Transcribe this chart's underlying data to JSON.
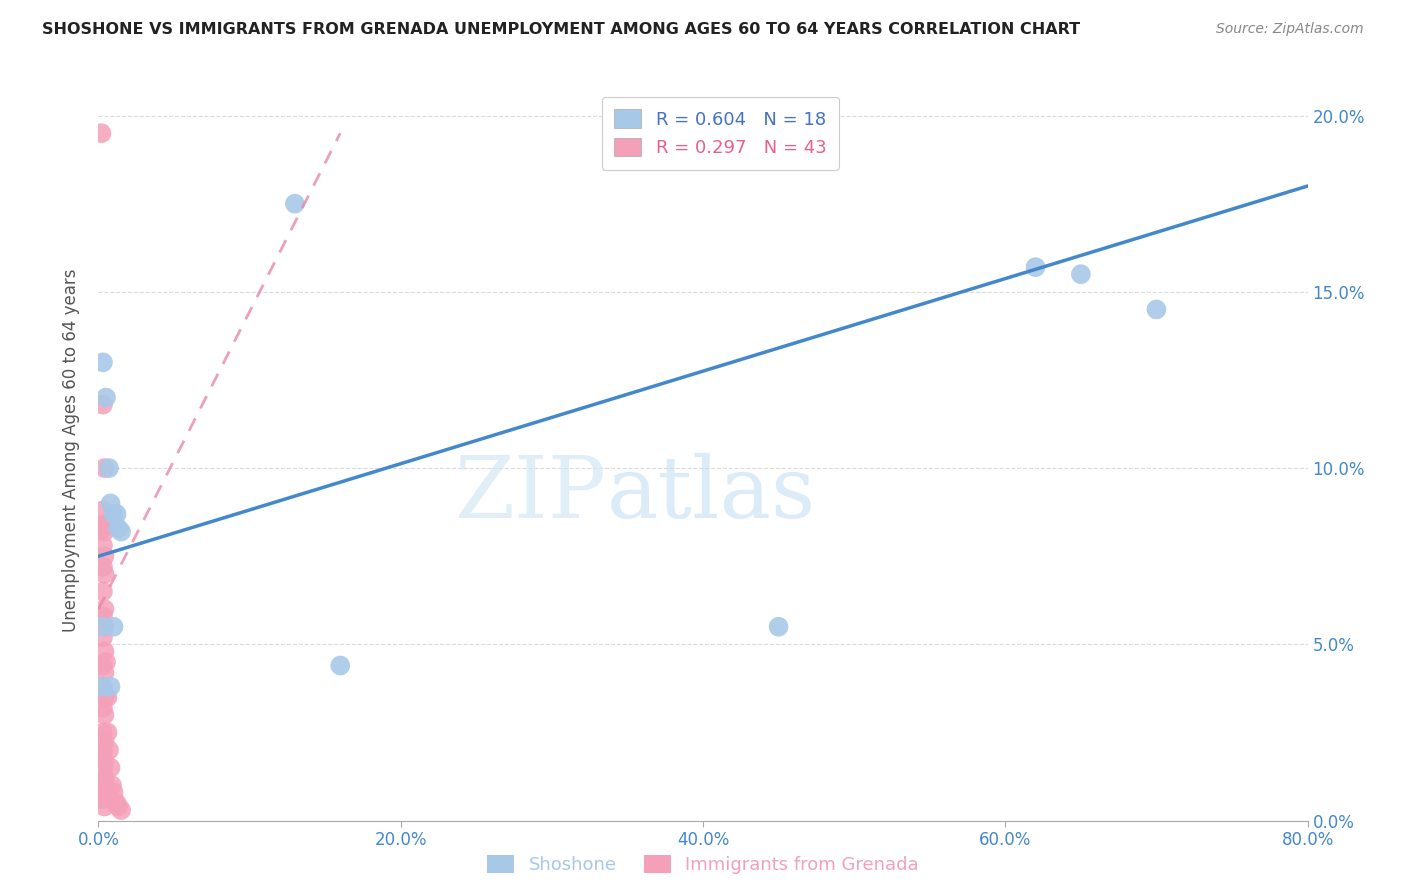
{
  "title": "SHOSHONE VS IMMIGRANTS FROM GRENADA UNEMPLOYMENT AMONG AGES 60 TO 64 YEARS CORRELATION CHART",
  "source": "Source: ZipAtlas.com",
  "xlabel_ticks": [
    "0.0%",
    "20.0%",
    "40.0%",
    "60.0%",
    "80.0%"
  ],
  "ylabel_ticks": [
    "0.0%",
    "5.0%",
    "10.0%",
    "15.0%",
    "20.0%"
  ],
  "ylabel_label": "Unemployment Among Ages 60 to 64 years",
  "xlim": [
    0.0,
    0.8
  ],
  "ylim": [
    0.0,
    0.21
  ],
  "shoshone_points": [
    [
      0.003,
      0.13
    ],
    [
      0.005,
      0.12
    ],
    [
      0.007,
      0.1
    ],
    [
      0.008,
      0.09
    ],
    [
      0.01,
      0.087
    ],
    [
      0.012,
      0.087
    ],
    [
      0.013,
      0.083
    ],
    [
      0.015,
      0.082
    ],
    [
      0.003,
      0.055
    ],
    [
      0.01,
      0.055
    ],
    [
      0.003,
      0.038
    ],
    [
      0.008,
      0.038
    ],
    [
      0.13,
      0.175
    ],
    [
      0.62,
      0.157
    ],
    [
      0.65,
      0.155
    ],
    [
      0.7,
      0.145
    ],
    [
      0.45,
      0.055
    ],
    [
      0.16,
      0.044
    ]
  ],
  "grenada_points": [
    [
      0.002,
      0.195
    ],
    [
      0.003,
      0.118
    ],
    [
      0.004,
      0.1
    ],
    [
      0.003,
      0.088
    ],
    [
      0.004,
      0.084
    ],
    [
      0.003,
      0.083
    ],
    [
      0.004,
      0.082
    ],
    [
      0.003,
      0.078
    ],
    [
      0.004,
      0.075
    ],
    [
      0.003,
      0.072
    ],
    [
      0.004,
      0.07
    ],
    [
      0.003,
      0.065
    ],
    [
      0.004,
      0.06
    ],
    [
      0.003,
      0.058
    ],
    [
      0.004,
      0.055
    ],
    [
      0.003,
      0.052
    ],
    [
      0.004,
      0.048
    ],
    [
      0.003,
      0.044
    ],
    [
      0.004,
      0.042
    ],
    [
      0.003,
      0.038
    ],
    [
      0.004,
      0.035
    ],
    [
      0.003,
      0.032
    ],
    [
      0.004,
      0.03
    ],
    [
      0.003,
      0.025
    ],
    [
      0.004,
      0.022
    ],
    [
      0.003,
      0.02
    ],
    [
      0.004,
      0.017
    ],
    [
      0.003,
      0.015
    ],
    [
      0.004,
      0.012
    ],
    [
      0.003,
      0.01
    ],
    [
      0.004,
      0.008
    ],
    [
      0.003,
      0.006
    ],
    [
      0.004,
      0.004
    ],
    [
      0.005,
      0.045
    ],
    [
      0.006,
      0.035
    ],
    [
      0.006,
      0.025
    ],
    [
      0.007,
      0.02
    ],
    [
      0.008,
      0.015
    ],
    [
      0.009,
      0.01
    ],
    [
      0.01,
      0.008
    ],
    [
      0.012,
      0.005
    ],
    [
      0.013,
      0.004
    ],
    [
      0.015,
      0.003
    ]
  ],
  "shoshone_R": 0.604,
  "shoshone_N": 18,
  "grenada_R": 0.297,
  "grenada_N": 43,
  "shoshone_color": "#a8c8e8",
  "grenada_color": "#f4a0b8",
  "shoshone_line_color": "#4488cc",
  "grenada_line_color": "#e888a8",
  "legend_R_color": "#4472c4",
  "legend_R2_color": "#e8608a",
  "watermark_zip": "ZIP",
  "watermark_atlas": "atlas",
  "background_color": "#ffffff",
  "grid_color": "#cccccc",
  "shoshone_line_x": [
    0.0,
    0.8
  ],
  "shoshone_line_y": [
    0.075,
    0.18
  ],
  "grenada_line_x": [
    0.0,
    0.16
  ],
  "grenada_line_y": [
    0.06,
    0.195
  ]
}
